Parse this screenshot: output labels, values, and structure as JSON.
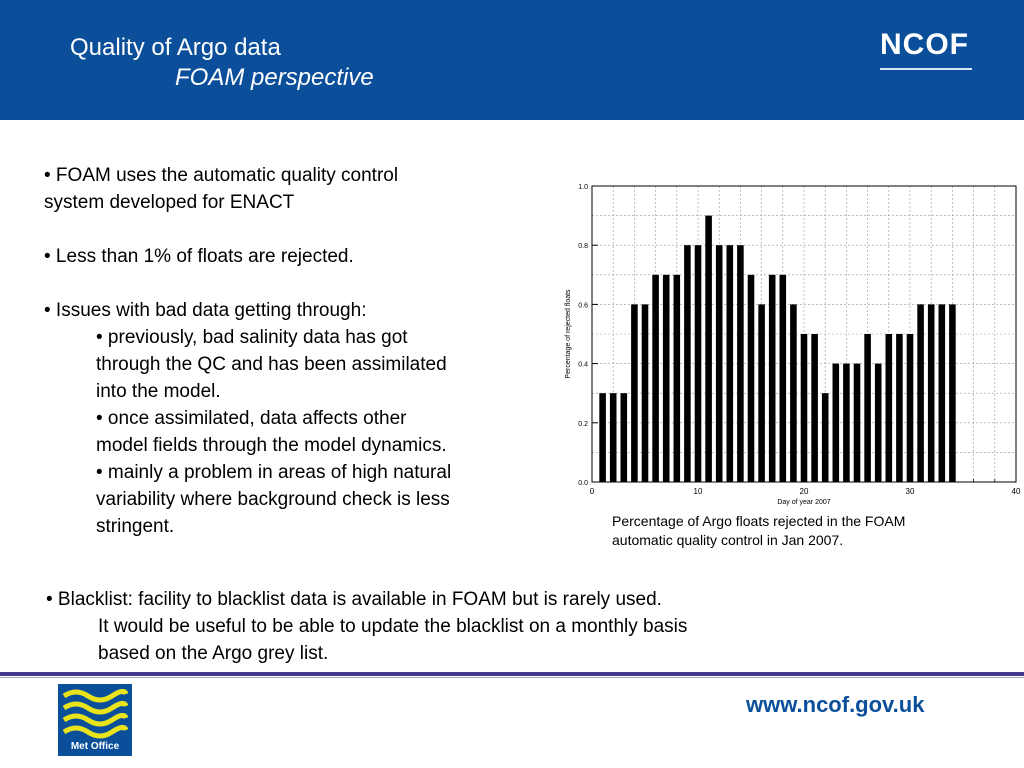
{
  "header": {
    "title": "Quality of Argo data",
    "subtitle": "FOAM perspective",
    "logo_text": "NCOF"
  },
  "left": {
    "b1_l1": "• FOAM uses the automatic quality control",
    "b1_l2": "system developed for ENACT",
    "b2": "• Less than 1% of floats are rejected.",
    "b3": "• Issues with bad data getting through:",
    "s1_l1": "• previously, bad salinity data has got",
    "s1_l2": "through the QC and has been assimilated",
    "s1_l3": "into the model.",
    "s2_l1": "• once assimilated, data affects other",
    "s2_l2": "model fields through the model dynamics.",
    "s3_l1": "• mainly a problem in areas of high natural",
    "s3_l2": "variability where background check is less",
    "s3_l3": "stringent."
  },
  "caption": {
    "l1": "Percentage of Argo floats rejected in the FOAM",
    "l2": "automatic quality control in Jan 2007."
  },
  "bottom": {
    "l1": "• Blacklist: facility to blacklist data is available in FOAM but is rarely used.",
    "l2": "It would be useful to be able to update the blacklist on a monthly basis",
    "l3": "based on the Argo grey list."
  },
  "footer": {
    "metoffice_label": "Met Office",
    "url": "www.ncof.gov.uk"
  },
  "chart_data": {
    "type": "bar",
    "xlabel": "Day of year 2007",
    "ylabel": "Percentage of rejected floats",
    "xlim": [
      0,
      40
    ],
    "ylim": [
      0,
      1.0
    ],
    "x_ticks": [
      0,
      10,
      20,
      30,
      40
    ],
    "y_ticks": [
      0.0,
      0.2,
      0.4,
      0.6,
      0.8,
      1.0
    ],
    "y_tick_labels": [
      "0.0",
      "0.2",
      "0.4",
      "0.6",
      "0.8",
      "1.0"
    ],
    "grid": true,
    "x": [
      1,
      2,
      3,
      4,
      5,
      6,
      7,
      8,
      9,
      10,
      11,
      12,
      13,
      14,
      15,
      16,
      17,
      18,
      19,
      20,
      21,
      22,
      23,
      24,
      25,
      26,
      27,
      28,
      29,
      30,
      31,
      32,
      33,
      34
    ],
    "values": [
      0.3,
      0.3,
      0.3,
      0.6,
      0.6,
      0.7,
      0.7,
      0.7,
      0.8,
      0.8,
      0.9,
      0.8,
      0.8,
      0.8,
      0.7,
      0.6,
      0.7,
      0.7,
      0.6,
      0.5,
      0.5,
      0.3,
      0.4,
      0.4,
      0.4,
      0.5,
      0.4,
      0.5,
      0.5,
      0.5,
      0.6,
      0.6,
      0.6,
      0.6
    ],
    "color": "#000000"
  }
}
